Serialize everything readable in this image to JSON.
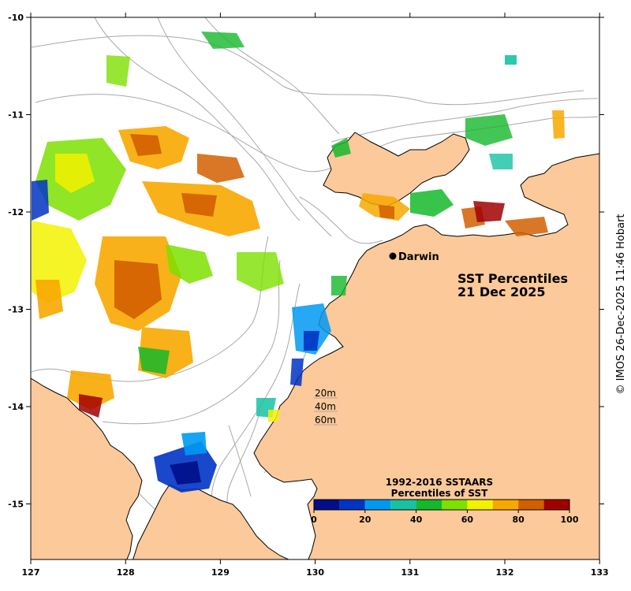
{
  "map": {
    "title_line1": "SST Percentiles",
    "title_line2": "21 Dec 2025",
    "place": "Darwin",
    "depth_labels": [
      "20m",
      "40m",
      "60m"
    ],
    "credit": "© IMOS 26-Dec-2025 11:46 Hobart",
    "lon_ticks": [
      "127",
      "128",
      "129",
      "130",
      "131",
      "132",
      "133"
    ],
    "lat_ticks": [
      "-10",
      "-11",
      "-12",
      "-13",
      "-14",
      "-15"
    ],
    "colors": {
      "land": "#fcc99a",
      "ocean": "#ffffff",
      "contour": "#a8a8a8",
      "coast": "#000000"
    },
    "colorbar": {
      "title_line1": "1992-2016 SSTAARS",
      "title_line2": "Percentiles of SST",
      "ticks": [
        "0",
        "20",
        "40",
        "60",
        "80",
        "100"
      ],
      "colors": [
        "#000e8a",
        "#0034c4",
        "#0099f2",
        "#17c2a4",
        "#15b82c",
        "#7de000",
        "#f2f200",
        "#f7a800",
        "#d25f00",
        "#a10000"
      ]
    }
  }
}
